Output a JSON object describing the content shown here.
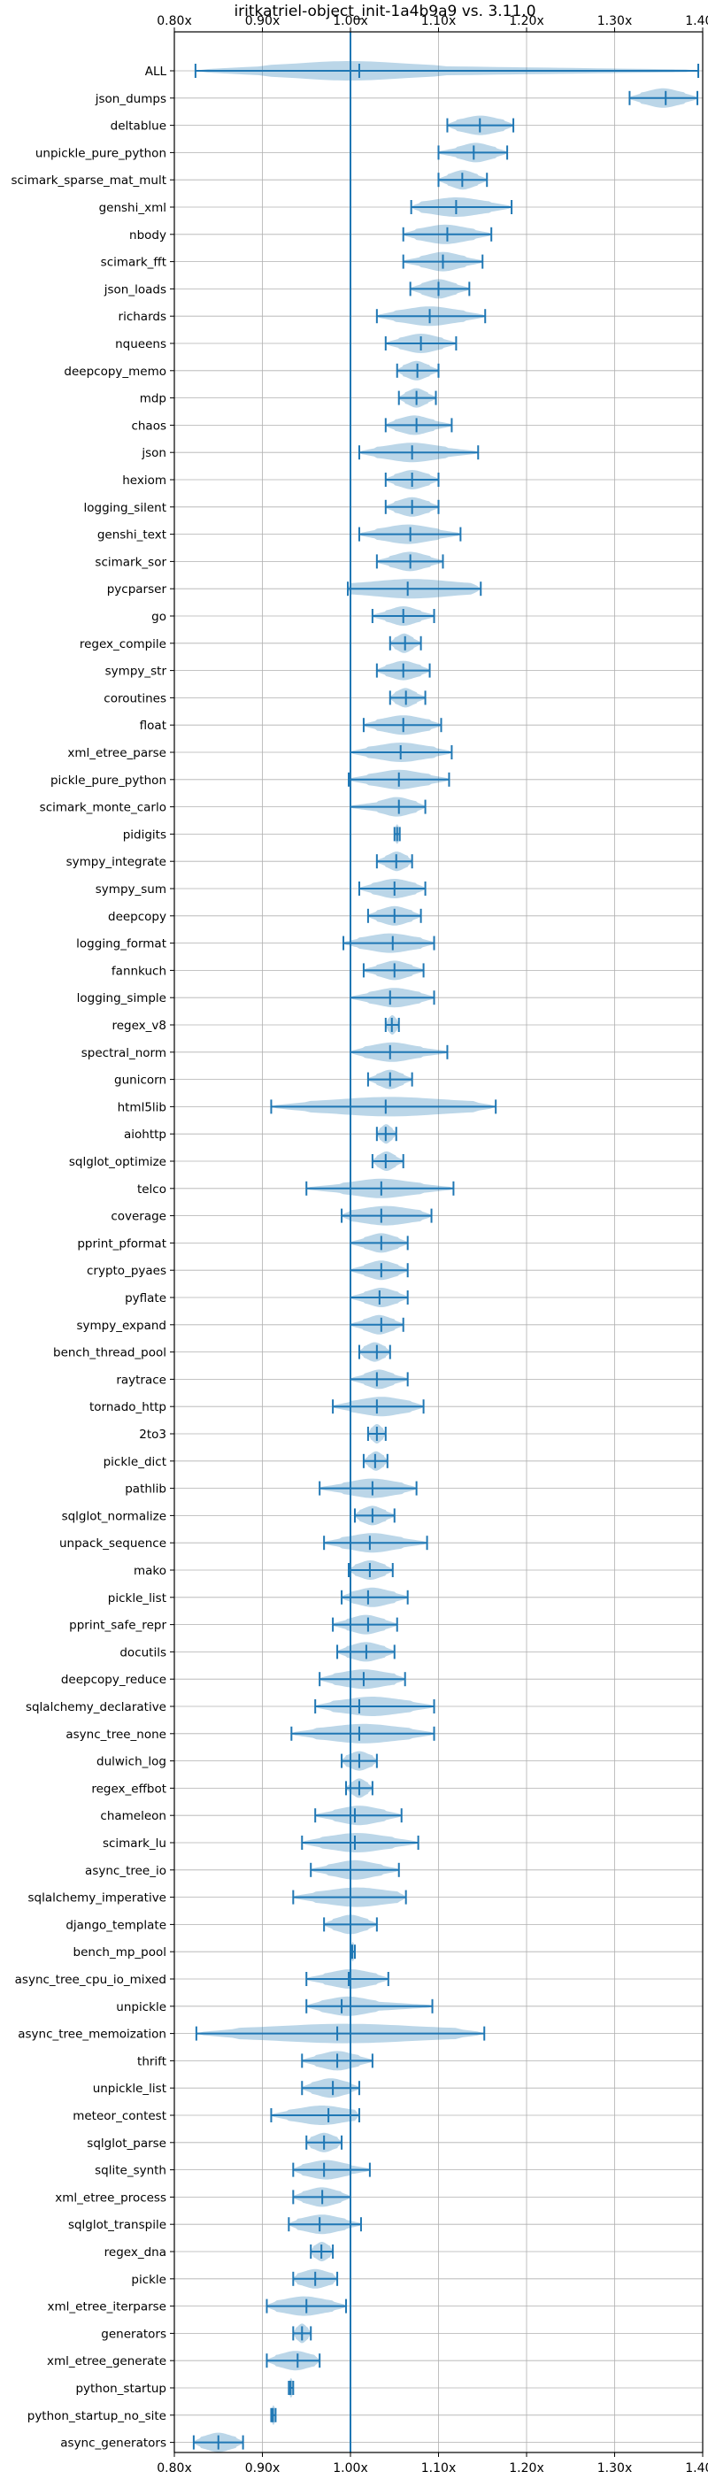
{
  "chart_data": {
    "type": "violin",
    "title": "iritkatriel-object_init-1a4b9a9 vs. 3.11.0",
    "orientation": "horizontal",
    "xlim": [
      0.8,
      1.4
    ],
    "xticks": [
      0.8,
      0.9,
      1.0,
      1.1,
      1.2,
      1.3,
      1.4
    ],
    "xtick_labels": [
      "0.80x",
      "0.90x",
      "1.00x",
      "1.10x",
      "1.20x",
      "1.30x",
      "1.40x"
    ],
    "reference_x": 1.0,
    "grid": true,
    "colors": {
      "violin": "#1f77b4",
      "reference": "#1f77b4",
      "grid": "#b0b0b0"
    },
    "series": [
      {
        "name": "ALL",
        "min": 0.824,
        "max": 1.395,
        "median": 1.01,
        "bulk": [
          0.9,
          1.1
        ]
      },
      {
        "name": "json_dumps",
        "min": 1.317,
        "max": 1.394,
        "median": 1.358,
        "bulk": [
          1.33,
          1.38
        ]
      },
      {
        "name": "deltablue",
        "min": 1.11,
        "max": 1.185,
        "median": 1.147,
        "bulk": [
          1.12,
          1.175
        ]
      },
      {
        "name": "unpickle_pure_python",
        "min": 1.1,
        "max": 1.178,
        "median": 1.14,
        "bulk": [
          1.12,
          1.165
        ]
      },
      {
        "name": "scimark_sparse_mat_mult",
        "min": 1.1,
        "max": 1.155,
        "median": 1.127,
        "bulk": [
          1.11,
          1.145
        ]
      },
      {
        "name": "genshi_xml",
        "min": 1.069,
        "max": 1.183,
        "median": 1.12,
        "bulk": [
          1.08,
          1.16
        ]
      },
      {
        "name": "nbody",
        "min": 1.06,
        "max": 1.16,
        "median": 1.11,
        "bulk": [
          1.075,
          1.14
        ]
      },
      {
        "name": "scimark_fft",
        "min": 1.06,
        "max": 1.15,
        "median": 1.105,
        "bulk": [
          1.08,
          1.13
        ]
      },
      {
        "name": "json_loads",
        "min": 1.068,
        "max": 1.135,
        "median": 1.1,
        "bulk": [
          1.08,
          1.12
        ]
      },
      {
        "name": "richards",
        "min": 1.03,
        "max": 1.153,
        "median": 1.09,
        "bulk": [
          1.05,
          1.13
        ]
      },
      {
        "name": "nqueens",
        "min": 1.04,
        "max": 1.12,
        "median": 1.08,
        "bulk": [
          1.055,
          1.105
        ]
      },
      {
        "name": "deepcopy_memo",
        "min": 1.053,
        "max": 1.1,
        "median": 1.076,
        "bulk": [
          1.06,
          1.09
        ]
      },
      {
        "name": "mdp",
        "min": 1.055,
        "max": 1.097,
        "median": 1.075,
        "bulk": [
          1.062,
          1.088
        ]
      },
      {
        "name": "chaos",
        "min": 1.04,
        "max": 1.115,
        "median": 1.075,
        "bulk": [
          1.05,
          1.095
        ]
      },
      {
        "name": "json",
        "min": 1.01,
        "max": 1.145,
        "median": 1.07,
        "bulk": [
          1.03,
          1.11
        ]
      },
      {
        "name": "hexiom",
        "min": 1.04,
        "max": 1.1,
        "median": 1.07,
        "bulk": [
          1.05,
          1.09
        ]
      },
      {
        "name": "logging_silent",
        "min": 1.04,
        "max": 1.1,
        "median": 1.07,
        "bulk": [
          1.05,
          1.09
        ]
      },
      {
        "name": "genshi_text",
        "min": 1.01,
        "max": 1.125,
        "median": 1.068,
        "bulk": [
          1.03,
          1.1
        ]
      },
      {
        "name": "scimark_sor",
        "min": 1.03,
        "max": 1.105,
        "median": 1.068,
        "bulk": [
          1.045,
          1.09
        ]
      },
      {
        "name": "pycparser",
        "min": 0.997,
        "max": 1.148,
        "median": 1.065,
        "bulk": [
          1.0,
          1.14
        ]
      },
      {
        "name": "go",
        "min": 1.025,
        "max": 1.095,
        "median": 1.06,
        "bulk": [
          1.04,
          1.08
        ]
      },
      {
        "name": "regex_compile",
        "min": 1.045,
        "max": 1.08,
        "median": 1.062,
        "bulk": [
          1.05,
          1.072
        ]
      },
      {
        "name": "sympy_str",
        "min": 1.03,
        "max": 1.09,
        "median": 1.06,
        "bulk": [
          1.04,
          1.08
        ]
      },
      {
        "name": "coroutines",
        "min": 1.045,
        "max": 1.085,
        "median": 1.063,
        "bulk": [
          1.05,
          1.075
        ]
      },
      {
        "name": "float",
        "min": 1.015,
        "max": 1.103,
        "median": 1.06,
        "bulk": [
          1.03,
          1.09
        ]
      },
      {
        "name": "xml_etree_parse",
        "min": 1.0,
        "max": 1.115,
        "median": 1.057,
        "bulk": [
          1.02,
          1.095
        ]
      },
      {
        "name": "pickle_pure_python",
        "min": 0.998,
        "max": 1.112,
        "median": 1.055,
        "bulk": [
          1.02,
          1.09
        ]
      },
      {
        "name": "scimark_monte_carlo",
        "min": 1.0,
        "max": 1.085,
        "median": 1.055,
        "bulk": [
          1.03,
          1.075
        ]
      },
      {
        "name": "pidigits",
        "min": 1.05,
        "max": 1.056,
        "median": 1.053,
        "bulk": [
          1.05,
          1.056
        ]
      },
      {
        "name": "sympy_integrate",
        "min": 1.03,
        "max": 1.07,
        "median": 1.052,
        "bulk": [
          1.04,
          1.065
        ]
      },
      {
        "name": "sympy_sum",
        "min": 1.01,
        "max": 1.085,
        "median": 1.05,
        "bulk": [
          1.025,
          1.075
        ]
      },
      {
        "name": "deepcopy",
        "min": 1.02,
        "max": 1.08,
        "median": 1.05,
        "bulk": [
          1.03,
          1.07
        ]
      },
      {
        "name": "logging_format",
        "min": 0.992,
        "max": 1.095,
        "median": 1.048,
        "bulk": [
          1.01,
          1.08
        ]
      },
      {
        "name": "fannkuch",
        "min": 1.015,
        "max": 1.083,
        "median": 1.05,
        "bulk": [
          1.03,
          1.07
        ]
      },
      {
        "name": "logging_simple",
        "min": 1.0,
        "max": 1.095,
        "median": 1.045,
        "bulk": [
          1.02,
          1.08
        ]
      },
      {
        "name": "regex_v8",
        "min": 1.04,
        "max": 1.055,
        "median": 1.047,
        "bulk": [
          1.042,
          1.053
        ]
      },
      {
        "name": "spectral_norm",
        "min": 1.0,
        "max": 1.11,
        "median": 1.045,
        "bulk": [
          1.015,
          1.08
        ]
      },
      {
        "name": "gunicorn",
        "min": 1.02,
        "max": 1.07,
        "median": 1.045,
        "bulk": [
          1.03,
          1.06
        ]
      },
      {
        "name": "html5lib",
        "min": 0.91,
        "max": 1.165,
        "median": 1.04,
        "bulk": [
          0.95,
          1.14
        ]
      },
      {
        "name": "aiohttp",
        "min": 1.03,
        "max": 1.052,
        "median": 1.04,
        "bulk": [
          1.033,
          1.048
        ]
      },
      {
        "name": "sqlglot_optimize",
        "min": 1.025,
        "max": 1.06,
        "median": 1.04,
        "bulk": [
          1.03,
          1.052
        ]
      },
      {
        "name": "telco",
        "min": 0.95,
        "max": 1.117,
        "median": 1.035,
        "bulk": [
          0.99,
          1.08
        ]
      },
      {
        "name": "coverage",
        "min": 0.99,
        "max": 1.092,
        "median": 1.035,
        "bulk": [
          1.0,
          1.08
        ]
      },
      {
        "name": "pprint_pformat",
        "min": 1.0,
        "max": 1.065,
        "median": 1.035,
        "bulk": [
          1.015,
          1.055
        ]
      },
      {
        "name": "crypto_pyaes",
        "min": 1.0,
        "max": 1.065,
        "median": 1.035,
        "bulk": [
          1.015,
          1.055
        ]
      },
      {
        "name": "pyflate",
        "min": 1.0,
        "max": 1.065,
        "median": 1.033,
        "bulk": [
          1.015,
          1.055
        ]
      },
      {
        "name": "sympy_expand",
        "min": 1.0,
        "max": 1.06,
        "median": 1.035,
        "bulk": [
          1.015,
          1.05
        ]
      },
      {
        "name": "bench_thread_pool",
        "min": 1.01,
        "max": 1.045,
        "median": 1.03,
        "bulk": [
          1.015,
          1.04
        ]
      },
      {
        "name": "raytrace",
        "min": 1.0,
        "max": 1.065,
        "median": 1.03,
        "bulk": [
          1.015,
          1.05
        ]
      },
      {
        "name": "tornado_http",
        "min": 0.98,
        "max": 1.083,
        "median": 1.03,
        "bulk": [
          1.0,
          1.07
        ]
      },
      {
        "name": "2to3",
        "min": 1.02,
        "max": 1.04,
        "median": 1.03,
        "bulk": [
          1.023,
          1.037
        ]
      },
      {
        "name": "pickle_dict",
        "min": 1.015,
        "max": 1.042,
        "median": 1.028,
        "bulk": [
          1.02,
          1.038
        ]
      },
      {
        "name": "pathlib",
        "min": 0.965,
        "max": 1.075,
        "median": 1.025,
        "bulk": [
          0.99,
          1.06
        ]
      },
      {
        "name": "sqlglot_normalize",
        "min": 1.005,
        "max": 1.05,
        "median": 1.025,
        "bulk": [
          1.01,
          1.04
        ]
      },
      {
        "name": "unpack_sequence",
        "min": 0.97,
        "max": 1.087,
        "median": 1.022,
        "bulk": [
          0.99,
          1.06
        ]
      },
      {
        "name": "mako",
        "min": 0.998,
        "max": 1.048,
        "median": 1.022,
        "bulk": [
          1.005,
          1.04
        ]
      },
      {
        "name": "pickle_list",
        "min": 0.99,
        "max": 1.065,
        "median": 1.02,
        "bulk": [
          1.0,
          1.05
        ]
      },
      {
        "name": "pprint_safe_repr",
        "min": 0.98,
        "max": 1.053,
        "median": 1.02,
        "bulk": [
          0.995,
          1.04
        ]
      },
      {
        "name": "docutils",
        "min": 0.985,
        "max": 1.05,
        "median": 1.018,
        "bulk": [
          0.995,
          1.04
        ]
      },
      {
        "name": "deepcopy_reduce",
        "min": 0.965,
        "max": 1.062,
        "median": 1.015,
        "bulk": [
          0.98,
          1.05
        ]
      },
      {
        "name": "sqlalchemy_declarative",
        "min": 0.96,
        "max": 1.095,
        "median": 1.01,
        "bulk": [
          0.98,
          1.07
        ]
      },
      {
        "name": "async_tree_none",
        "min": 0.933,
        "max": 1.095,
        "median": 1.01,
        "bulk": [
          0.96,
          1.07
        ]
      },
      {
        "name": "dulwich_log",
        "min": 0.99,
        "max": 1.03,
        "median": 1.01,
        "bulk": [
          0.995,
          1.025
        ]
      },
      {
        "name": "regex_effbot",
        "min": 0.995,
        "max": 1.025,
        "median": 1.01,
        "bulk": [
          1.0,
          1.02
        ]
      },
      {
        "name": "chameleon",
        "min": 0.96,
        "max": 1.058,
        "median": 1.005,
        "bulk": [
          0.98,
          1.04
        ]
      },
      {
        "name": "scimark_lu",
        "min": 0.945,
        "max": 1.077,
        "median": 1.005,
        "bulk": [
          0.965,
          1.05
        ]
      },
      {
        "name": "async_tree_io",
        "min": 0.955,
        "max": 1.055,
        "median": 1.0,
        "bulk": [
          0.975,
          1.035
        ]
      },
      {
        "name": "sqlalchemy_imperative",
        "min": 0.935,
        "max": 1.063,
        "median": 1.0,
        "bulk": [
          0.96,
          1.055
        ]
      },
      {
        "name": "django_template",
        "min": 0.97,
        "max": 1.03,
        "median": 1.0,
        "bulk": [
          0.98,
          1.02
        ]
      },
      {
        "name": "bench_mp_pool",
        "min": 1.0,
        "max": 1.005,
        "median": 1.002,
        "bulk": [
          1.0,
          1.005
        ]
      },
      {
        "name": "async_tree_cpu_io_mixed",
        "min": 0.95,
        "max": 1.043,
        "median": 0.998,
        "bulk": [
          0.97,
          1.03
        ]
      },
      {
        "name": "unpickle",
        "min": 0.95,
        "max": 1.093,
        "median": 0.99,
        "bulk": [
          0.965,
          1.03
        ]
      },
      {
        "name": "async_tree_memoization",
        "min": 0.825,
        "max": 1.152,
        "median": 0.985,
        "bulk": [
          0.87,
          1.12
        ]
      },
      {
        "name": "thrift",
        "min": 0.945,
        "max": 1.025,
        "median": 0.985,
        "bulk": [
          0.96,
          1.01
        ]
      },
      {
        "name": "unpickle_list",
        "min": 0.945,
        "max": 1.01,
        "median": 0.98,
        "bulk": [
          0.955,
          1.0
        ]
      },
      {
        "name": "meteor_contest",
        "min": 0.91,
        "max": 1.01,
        "median": 0.975,
        "bulk": [
          0.93,
          1.005
        ]
      },
      {
        "name": "sqlglot_parse",
        "min": 0.95,
        "max": 0.99,
        "median": 0.97,
        "bulk": [
          0.955,
          0.985
        ]
      },
      {
        "name": "sqlite_synth",
        "min": 0.935,
        "max": 1.022,
        "median": 0.97,
        "bulk": [
          0.945,
          1.0
        ]
      },
      {
        "name": "xml_etree_process",
        "min": 0.935,
        "max": 1.0,
        "median": 0.968,
        "bulk": [
          0.945,
          0.99
        ]
      },
      {
        "name": "sqlglot_transpile",
        "min": 0.93,
        "max": 1.012,
        "median": 0.965,
        "bulk": [
          0.94,
          0.995
        ]
      },
      {
        "name": "regex_dna",
        "min": 0.955,
        "max": 0.98,
        "median": 0.967,
        "bulk": [
          0.958,
          0.977
        ]
      },
      {
        "name": "pickle",
        "min": 0.935,
        "max": 0.985,
        "median": 0.96,
        "bulk": [
          0.94,
          0.98
        ]
      },
      {
        "name": "xml_etree_iterparse",
        "min": 0.905,
        "max": 0.995,
        "median": 0.95,
        "bulk": [
          0.915,
          0.98
        ]
      },
      {
        "name": "generators",
        "min": 0.935,
        "max": 0.955,
        "median": 0.945,
        "bulk": [
          0.938,
          0.952
        ]
      },
      {
        "name": "xml_etree_generate",
        "min": 0.905,
        "max": 0.965,
        "median": 0.94,
        "bulk": [
          0.915,
          0.96
        ]
      },
      {
        "name": "python_startup",
        "min": 0.93,
        "max": 0.935,
        "median": 0.932,
        "bulk": [
          0.93,
          0.935
        ]
      },
      {
        "name": "python_startup_no_site",
        "min": 0.91,
        "max": 0.915,
        "median": 0.912,
        "bulk": [
          0.91,
          0.915
        ]
      },
      {
        "name": "async_generators",
        "min": 0.822,
        "max": 0.878,
        "median": 0.85,
        "bulk": [
          0.83,
          0.87
        ]
      }
    ]
  }
}
